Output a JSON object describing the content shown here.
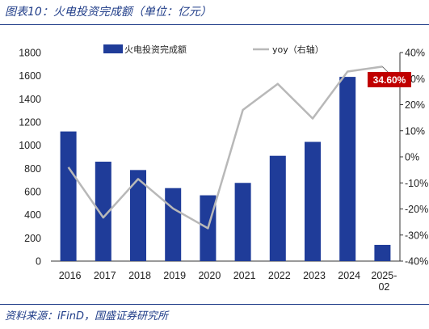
{
  "title": "图表10：火电投资完成额（单位：亿元）",
  "source": "资料来源：iFinD，国盛证券研究所",
  "colors": {
    "bar": "#1f3c99",
    "line": "#b8b8b8",
    "callout_bg": "#c00000",
    "accent": "#1f3c88"
  },
  "chart_data": {
    "type": "bar",
    "categories": [
      "2016",
      "2017",
      "2018",
      "2019",
      "2020",
      "2021",
      "2022",
      "2023",
      "2024",
      "2025-02"
    ],
    "category_labels": [
      [
        "2016"
      ],
      [
        "2017"
      ],
      [
        "2018"
      ],
      [
        "2019"
      ],
      [
        "2020"
      ],
      [
        "2021"
      ],
      [
        "2022"
      ],
      [
        "2023"
      ],
      [
        "2024"
      ],
      [
        "2025-",
        "02"
      ]
    ],
    "series": [
      {
        "name": "火电投资完成额",
        "type": "bar",
        "axis": "left",
        "values": [
          1119,
          858,
          786,
          630,
          568,
          675,
          909,
          1029,
          1590,
          140
        ]
      },
      {
        "name": "yoy（右轴）",
        "type": "line",
        "axis": "right",
        "values": [
          -4.0,
          -23.3,
          -8.5,
          -19.8,
          -27.4,
          18.0,
          28.0,
          14.7,
          32.7,
          34.6
        ]
      }
    ],
    "ylim_left": [
      0,
      1800
    ],
    "yticks_left": [
      "0",
      "200",
      "400",
      "600",
      "800",
      "1000",
      "1200",
      "1400",
      "1600",
      "1800"
    ],
    "ylim_right": [
      -40,
      40
    ],
    "yticks_right": [
      "-40%",
      "-30%",
      "-20%",
      "-10%",
      "0%",
      "10%",
      "20%",
      "30%",
      "40%"
    ],
    "callout": "34.60%",
    "legend_position": "top",
    "grid": false
  }
}
